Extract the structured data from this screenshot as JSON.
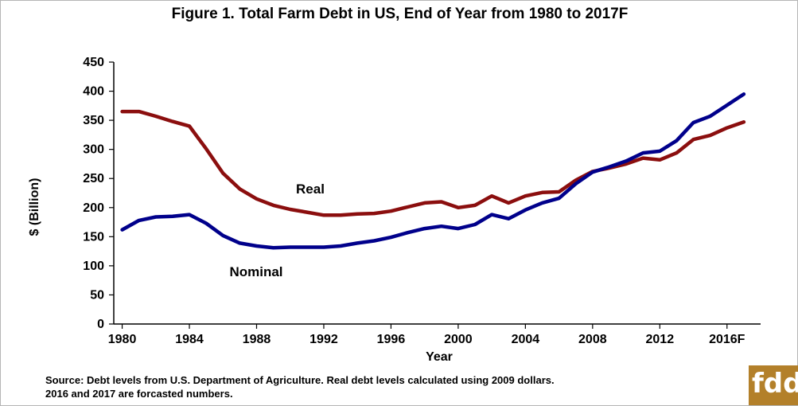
{
  "chart_data": {
    "type": "line",
    "title": "Figure 1.  Total Farm Debt in US, End of Year from 1980 to 2017F",
    "xlabel": "Year",
    "ylabel": "$ (Billion)",
    "ylim": [
      0,
      450
    ],
    "yticks": [
      0,
      50,
      100,
      150,
      200,
      250,
      300,
      350,
      400,
      450
    ],
    "xtick_labels": [
      "1980",
      "1984",
      "1988",
      "1992",
      "1996",
      "2000",
      "2004",
      "2008",
      "2012",
      "2016F"
    ],
    "xticks": [
      1980,
      1984,
      1988,
      1992,
      1996,
      2000,
      2004,
      2008,
      2012,
      2016
    ],
    "xlim": [
      1979.5,
      2018
    ],
    "grid": false,
    "legend": "none (inline series labels)",
    "x": [
      1980,
      1981,
      1982,
      1983,
      1984,
      1985,
      1986,
      1987,
      1988,
      1989,
      1990,
      1991,
      1992,
      1993,
      1994,
      1995,
      1996,
      1997,
      1998,
      1999,
      2000,
      2001,
      2002,
      2003,
      2004,
      2005,
      2006,
      2007,
      2008,
      2009,
      2010,
      2011,
      2012,
      2013,
      2014,
      2015,
      2016,
      2017
    ],
    "series": [
      {
        "name": "Real",
        "color": "#8b0e0e",
        "values": [
          365,
          365,
          357,
          348,
          340,
          301,
          259,
          232,
          215,
          204,
          197,
          192,
          187,
          187,
          189,
          190,
          194,
          201,
          208,
          210,
          200,
          204,
          220,
          208,
          220,
          226,
          227,
          247,
          262,
          268,
          275,
          285,
          282,
          294,
          317,
          324,
          337,
          347
        ]
      },
      {
        "name": "Nominal",
        "color": "#00008b",
        "values": [
          162,
          178,
          184,
          185,
          188,
          173,
          152,
          139,
          134,
          131,
          132,
          132,
          132,
          134,
          139,
          143,
          149,
          157,
          164,
          168,
          164,
          171,
          188,
          181,
          196,
          208,
          216,
          241,
          261,
          270,
          280,
          294,
          297,
          315,
          346,
          357,
          376,
          395
        ]
      }
    ],
    "series_labels": [
      "Real",
      "Nominal"
    ]
  },
  "source_note": {
    "line1": "Source: Debt levels from U.S. Department of Agriculture.  Real debt levels calculated using 2009 dollars.",
    "line2": "2016 and 2017 are forcasted numbers."
  },
  "logo_text": "fdd"
}
